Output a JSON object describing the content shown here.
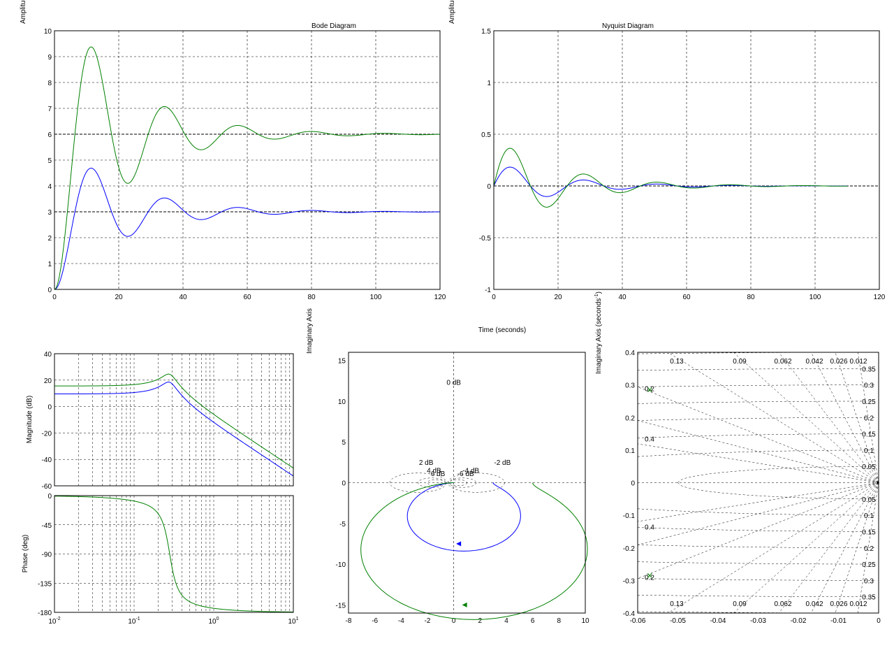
{
  "figure": {
    "title": "Bode Diagram",
    "nyquist_title": "Nyquist Diagram",
    "bottom_xlabel": "Time (seconds)",
    "clipped_ylabel_1": "Amplitude",
    "clipped_ylabel_2": "Amplitude"
  },
  "chart_data": [
    {
      "id": "step",
      "type": "line",
      "xlim": [
        0,
        120
      ],
      "ylim": [
        0,
        10
      ],
      "xticks": [
        "0",
        "20",
        "40",
        "60",
        "80",
        "100",
        "120"
      ],
      "yticks": [
        "0",
        "1",
        "2",
        "3",
        "4",
        "5",
        "6",
        "7",
        "8",
        "9",
        "10"
      ],
      "ylabel": "Amplitude",
      "grid": true,
      "reference_lines": [
        3,
        6
      ],
      "series": [
        {
          "color": "#0000ff",
          "model": {
            "final": 3,
            "zeta": 0.18,
            "wn": 0.28,
            "tmax": 120
          }
        },
        {
          "color": "#008000",
          "model": {
            "final": 6,
            "zeta": 0.18,
            "wn": 0.28,
            "tmax": 120
          }
        }
      ]
    },
    {
      "id": "impulse",
      "type": "line",
      "xlim": [
        0,
        120
      ],
      "ylim": [
        -1,
        1.5
      ],
      "xticks": [
        "0",
        "20",
        "40",
        "60",
        "80",
        "100",
        "120"
      ],
      "yticks": [
        "-1",
        "-0.5",
        "0",
        "0.5",
        "1",
        "1.5"
      ],
      "ylabel": "Amplitude",
      "grid": true,
      "reference_lines": [
        0
      ],
      "series": [
        {
          "color": "#0000ff",
          "model": {
            "gain": 0.235,
            "zeta": 0.18,
            "wn": 0.28,
            "tmax": 110
          }
        },
        {
          "color": "#008000",
          "model": {
            "gain": 0.47,
            "zeta": 0.18,
            "wn": 0.28,
            "tmax": 110
          }
        }
      ]
    },
    {
      "id": "bode-magnitude",
      "type": "line",
      "xscale": "log",
      "xlim": [
        0.01,
        10
      ],
      "ylim": [
        -60,
        40
      ],
      "yticks": [
        "-60",
        "-40",
        "-20",
        "0",
        "20",
        "40"
      ],
      "ylabel": "Magnitude (dB)",
      "grid": true,
      "series": [
        {
          "color": "#0000ff",
          "model": {
            "dc_gain": 3,
            "zeta": 0.18,
            "wn": 0.28
          }
        },
        {
          "color": "#008000",
          "model": {
            "dc_gain": 6,
            "zeta": 0.18,
            "wn": 0.28
          }
        }
      ]
    },
    {
      "id": "bode-phase",
      "type": "line",
      "xscale": "log",
      "xlim": [
        0.01,
        10
      ],
      "ylim": [
        -180,
        0
      ],
      "xticks": [
        {
          "base": "10",
          "exp": "-2"
        },
        {
          "base": "10",
          "exp": "-1"
        },
        {
          "base": "10",
          "exp": "0"
        },
        {
          "base": "10",
          "exp": "1"
        }
      ],
      "yticks": [
        "-180",
        "-135",
        "-90",
        "-45",
        "0"
      ],
      "ylabel": "Phase (deg)",
      "grid": true,
      "series": [
        {
          "color": "#008000",
          "model": {
            "zeta": 0.18,
            "wn": 0.28
          }
        }
      ]
    },
    {
      "id": "nyquist",
      "type": "line",
      "xlim": [
        -8,
        10
      ],
      "ylim": [
        -16,
        16
      ],
      "xticks": [
        "-8",
        "-6",
        "-4",
        "-2",
        "0",
        "2",
        "4",
        "6",
        "8",
        "10"
      ],
      "yticks": [
        "-15",
        "-10",
        "-5",
        "0",
        "5",
        "10",
        "15"
      ],
      "ylabel": "Imaginary Axis",
      "grid_labels": [
        "0 dB",
        "2 dB",
        "-2 dB",
        "4 dB",
        "-4 dB",
        "6 dB",
        "-6 dB"
      ],
      "series": [
        {
          "color": "#0000ff",
          "model": {
            "dc_gain": 3,
            "zeta": 0.18,
            "wn": 0.28
          }
        },
        {
          "color": "#008000",
          "model": {
            "dc_gain": 6,
            "zeta": 0.18,
            "wn": 0.28
          }
        }
      ]
    },
    {
      "id": "pzmap",
      "type": "scatter",
      "xlim": [
        -0.06,
        0
      ],
      "ylim": [
        -0.4,
        0.4
      ],
      "xticks": [
        "-0.06",
        "-0.05",
        "-0.04",
        "-0.03",
        "-0.02",
        "-0.01",
        "0"
      ],
      "yticks": [
        "-0.4",
        "-0.3",
        "-0.2",
        "-0.1",
        "0",
        "0.1",
        "0.2",
        "0.3",
        "0.4"
      ],
      "ylabel": "Imaginary Axis (seconds",
      "ylabel_sup": "-1",
      "ylabel_end": ")",
      "damping_labels": [
        "0.13",
        "0.09",
        "0.062",
        "0.042",
        "0.026",
        "0.012"
      ],
      "freq_labels": [
        "0.35",
        "0.3",
        "0.25",
        "0.2",
        "0.15",
        "0.1",
        "0.05"
      ],
      "left_labels": [
        "0.2",
        "0.4"
      ],
      "points": [
        {
          "x": -0.057,
          "y": 0.285,
          "marker": "x",
          "color": "#008000"
        },
        {
          "x": -0.057,
          "y": -0.285,
          "marker": "x",
          "color": "#008000"
        }
      ]
    }
  ]
}
